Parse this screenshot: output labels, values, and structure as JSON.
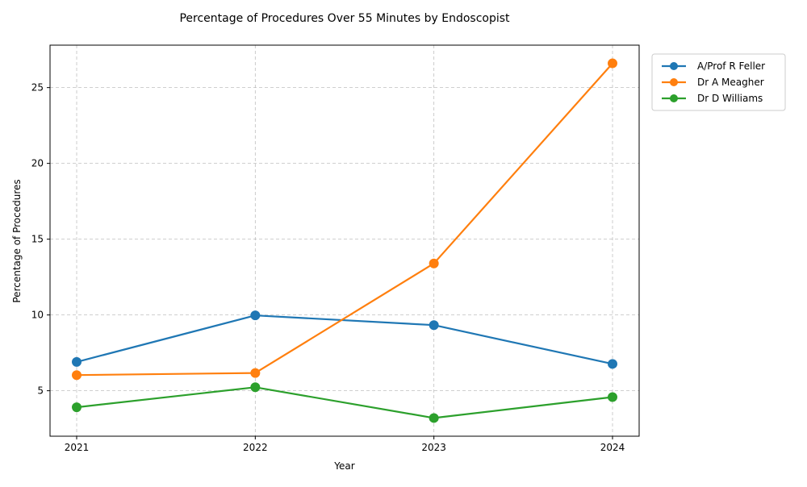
{
  "chart_data": {
    "type": "line",
    "title": "Percentage of Procedures Over 55 Minutes by Endoscopist",
    "xlabel": "Year",
    "ylabel": "Percentage of Procedures",
    "x": [
      "2021",
      "2022",
      "2023",
      "2024"
    ],
    "ylim": [
      2.0,
      27.8
    ],
    "yticks": [
      5,
      10,
      15,
      20,
      25
    ],
    "grid": true,
    "legend_position": "outside-top-right",
    "series": [
      {
        "name": "A/Prof R Feller",
        "color": "#1f77b4",
        "values": [
          6.9,
          9.97,
          9.33,
          6.77
        ]
      },
      {
        "name": "Dr A Meagher",
        "color": "#ff7f0e",
        "values": [
          6.03,
          6.17,
          13.4,
          26.6
        ]
      },
      {
        "name": "Dr D Williams",
        "color": "#2ca02c",
        "values": [
          3.91,
          5.23,
          3.2,
          4.58
        ]
      }
    ]
  }
}
